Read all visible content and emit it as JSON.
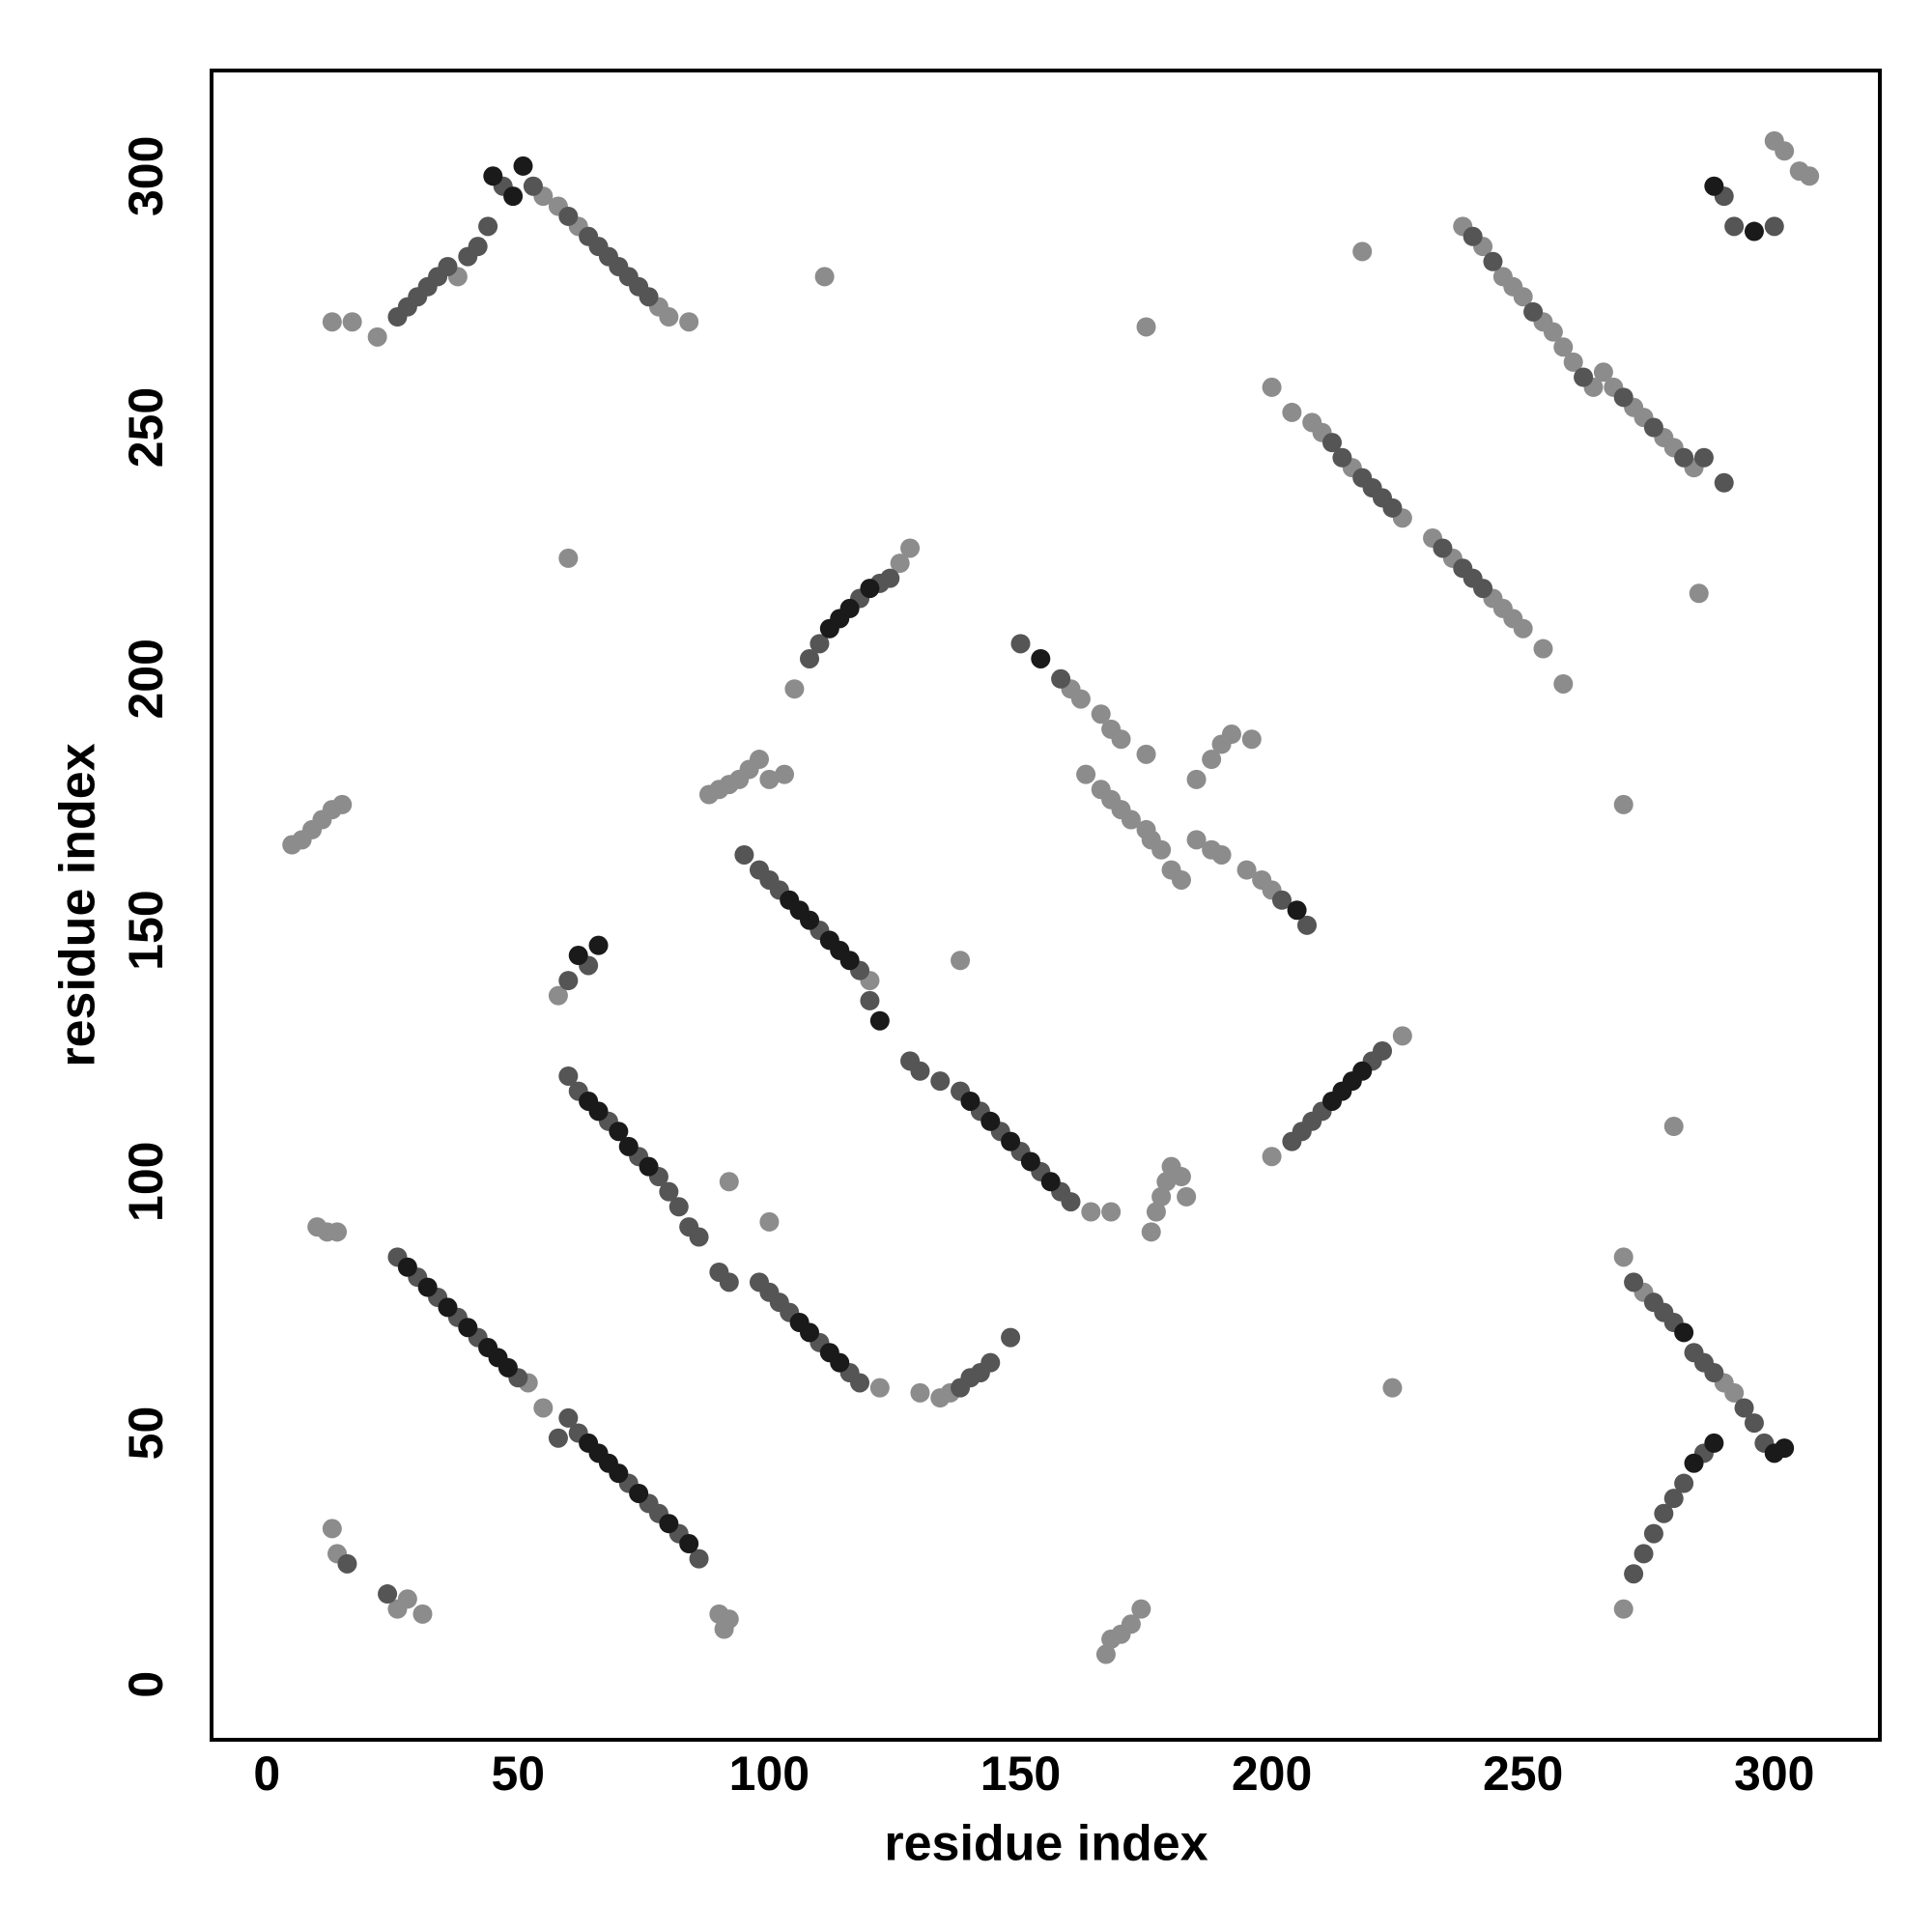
{
  "chart_data": {
    "type": "scatter",
    "x_label": "residue index",
    "y_label": "residue index",
    "xlim": [
      -11,
      321
    ],
    "ylim": [
      -11,
      321
    ],
    "xticks": [
      0,
      50,
      100,
      150,
      200,
      250,
      300
    ],
    "yticks": [
      0,
      50,
      100,
      150,
      200,
      250,
      300
    ],
    "grid": false,
    "series": [
      {
        "color": "#8c8c8c",
        "x": [
          5,
          7,
          9,
          11,
          13,
          15,
          10,
          12,
          14,
          13,
          14,
          26,
          28,
          31,
          90,
          91,
          92,
          167,
          168,
          170,
          172,
          174,
          111,
          175,
          218,
          60,
          92,
          100,
          224,
          280,
          270,
          285,
          258,
          270,
          88,
          90,
          92,
          94,
          96,
          98,
          100,
          103,
          176,
          177,
          178,
          179,
          180,
          182,
          183,
          130,
          134,
          136,
          160,
          162,
          166,
          168,
          170,
          175,
          185,
          188,
          190,
          195,
          198,
          200,
          163,
          166,
          168,
          170,
          172,
          176,
          178,
          180,
          182,
          185,
          188,
          190,
          192,
          196,
          175,
          200,
          204,
          208,
          210,
          216,
          226,
          232,
          236,
          244,
          246,
          248,
          250,
          254,
          238,
          242,
          246,
          248,
          250,
          254,
          256,
          258,
          260,
          264,
          266,
          268,
          272,
          274,
          278,
          280,
          284,
          270,
          274,
          290,
          292,
          13,
          17,
          22,
          38,
          55,
          58,
          62,
          78,
          80,
          84,
          300,
          302,
          305,
          307,
          105,
          126,
          128,
          200,
          226,
          164,
          168,
          58,
          55,
          52,
          122,
          120,
          138
        ],
        "values": [
          167,
          168,
          170,
          172,
          174,
          175,
          91,
          90,
          90,
          31,
          26,
          15,
          17,
          14,
          14,
          11,
          13,
          6,
          9,
          10,
          12,
          15,
          280,
          270,
          285,
          224,
          100,
          92,
          59,
          111,
          175,
          217,
          199,
          15,
          177,
          178,
          179,
          180,
          182,
          184,
          180,
          181,
          90,
          94,
          97,
          100,
          103,
          101,
          97,
          58,
          57,
          58,
          198,
          196,
          193,
          190,
          188,
          185,
          168,
          166,
          165,
          162,
          160,
          158,
          181,
          178,
          176,
          174,
          172,
          168,
          166,
          162,
          160,
          180,
          184,
          187,
          189,
          188,
          170,
          258,
          253,
          251,
          249,
          242,
          232,
          228,
          224,
          216,
          214,
          212,
          210,
          206,
          290,
          286,
          280,
          278,
          276,
          271,
          269,
          266,
          263,
          258,
          261,
          258,
          254,
          252,
          248,
          246,
          242,
          85,
          78,
          60,
          58,
          271,
          271,
          268,
          280,
          296,
          294,
          290,
          274,
          272,
          271,
          307,
          305,
          301,
          300,
          198,
          223,
          226,
          105,
          129,
          94,
          94,
          137,
          55,
          60,
          59,
          140,
          144
        ]
      },
      {
        "color": "#555555",
        "x": [
          26,
          30,
          34,
          38,
          42,
          50,
          58,
          60,
          62,
          72,
          76,
          78,
          82,
          86,
          60,
          62,
          68,
          74,
          78,
          80,
          82,
          84,
          86,
          90,
          92,
          98,
          100,
          102,
          104,
          110,
          116,
          118,
          95,
          98,
          100,
          102,
          110,
          118,
          120,
          128,
          130,
          134,
          138,
          142,
          146,
          150,
          154,
          158,
          160,
          108,
          110,
          118,
          122,
          124,
          204,
          206,
          208,
          210,
          220,
          222,
          138,
          140,
          142,
          144,
          148,
          272,
          274,
          276,
          278,
          280,
          282,
          286,
          272,
          276,
          278,
          280,
          284,
          286,
          288,
          294,
          296,
          298,
          26,
          28,
          30,
          32,
          34,
          36,
          40,
          42,
          44,
          47,
          53,
          60,
          64,
          66,
          68,
          70,
          72,
          74,
          76,
          290,
          292,
          300,
          150,
          158,
          202,
          207,
          212,
          214,
          218,
          220,
          222,
          224,
          234,
          238,
          240,
          242,
          240,
          244,
          252,
          262,
          270,
          276,
          282,
          286,
          290,
          60,
          64,
          24,
          16
        ],
        "values": [
          85,
          81,
          77,
          73,
          69,
          61,
          49,
          53,
          50,
          40,
          36,
          34,
          30,
          25,
          121,
          118,
          112,
          105,
          101,
          98,
          95,
          91,
          89,
          82,
          80,
          80,
          78,
          76,
          74,
          68,
          62,
          60,
          165,
          162,
          160,
          158,
          150,
          142,
          136,
          124,
          122,
          120,
          118,
          114,
          110,
          106,
          102,
          98,
          96,
          204,
          207,
          216,
          219,
          220,
          108,
          110,
          112,
          114,
          124,
          126,
          59,
          61,
          62,
          64,
          69,
          22,
          26,
          30,
          34,
          37,
          40,
          46,
          80,
          76,
          74,
          72,
          66,
          64,
          62,
          55,
          52,
          48,
          272,
          274,
          276,
          278,
          280,
          282,
          284,
          286,
          290,
          298,
          298,
          292,
          288,
          286,
          284,
          282,
          280,
          278,
          276,
          296,
          290,
          290,
          207,
          200,
          156,
          151,
          247,
          244,
          240,
          238,
          236,
          234,
          226,
          222,
          220,
          218,
          288,
          283,
          273,
          260,
          256,
          250,
          244,
          244,
          239,
          140,
          143,
          18,
          24
        ]
      },
      {
        "color": "#1a1a1a",
        "x": [
          28,
          32,
          36,
          40,
          44,
          46,
          48,
          64,
          66,
          68,
          70,
          74,
          80,
          84,
          64,
          66,
          70,
          72,
          76,
          106,
          108,
          112,
          114,
          104,
          106,
          108,
          112,
          114,
          116,
          122,
          140,
          144,
          148,
          152,
          156,
          112,
          114,
          116,
          120,
          212,
          214,
          216,
          218,
          282,
          284,
          288,
          300,
          302,
          45,
          49,
          51,
          288,
          296,
          154,
          205,
          66,
          62
        ],
        "values": [
          83,
          79,
          75,
          71,
          67,
          65,
          63,
          48,
          46,
          44,
          42,
          38,
          32,
          28,
          116,
          114,
          110,
          107,
          103,
          72,
          70,
          66,
          64,
          156,
          154,
          152,
          148,
          146,
          144,
          132,
          116,
          112,
          108,
          104,
          100,
          210,
          212,
          214,
          218,
          116,
          118,
          120,
          122,
          70,
          44,
          48,
          46,
          47,
          300,
          296,
          302,
          298,
          289,
          204,
          154,
          147,
          145
        ]
      }
    ]
  }
}
